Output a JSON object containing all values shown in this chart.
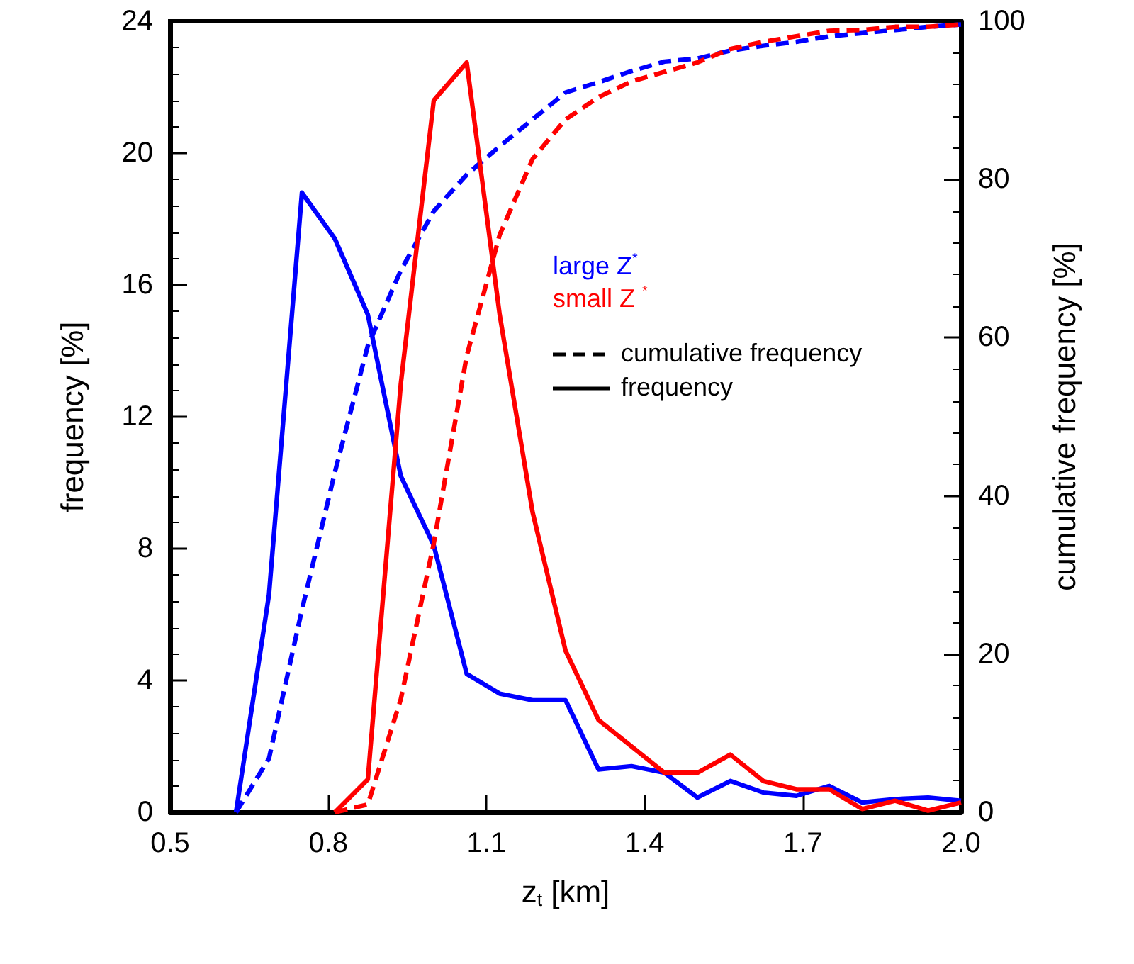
{
  "chart_data": {
    "type": "line",
    "xlabel": "z$_{t}$ [km]",
    "ylabel": "frequency [%]",
    "y2label": "cumulative frequency [%]",
    "xlim": [
      0.5,
      2.0
    ],
    "xticks": [
      0.5,
      0.8,
      1.1,
      1.4,
      1.7,
      {
        "value": 2.0,
        "label": "2.0"
      }
    ],
    "ylim": [
      0,
      24
    ],
    "yticks": [
      0,
      4,
      8,
      12,
      16,
      20,
      24
    ],
    "y2lim": [
      0,
      100
    ],
    "y2ticks": [
      0,
      20,
      40,
      60,
      80,
      100
    ],
    "grid": false,
    "legend": "right",
    "marker": "none",
    "annotations": [
      "cumulative frequency",
      "frequency"
    ],
    "series": [
      {
        "color": "#0000ff",
        "axis": "y2",
        "line_style": "dashed",
        "x": [
          0.625,
          0.6875,
          0.75,
          0.8125,
          0.875,
          0.9375,
          1.0,
          1.0625,
          1.125,
          1.1875,
          1.25,
          1.3125,
          1.375,
          1.4375,
          1.5,
          1.5625,
          1.625,
          1.6875,
          1.75,
          1.8125,
          1.875,
          1.9375,
          2.0
        ],
        "values": [
          0,
          6.8,
          25.6,
          43,
          59,
          68.5,
          76,
          80.6,
          84.2,
          87.6,
          91,
          92.3,
          93.7,
          94.9,
          95.3,
          96.3,
          96.9,
          97.4,
          98.1,
          98.5,
          98.9,
          99.3,
          99.6
        ]
      },
      {
        "name": "large Z$^{*}$",
        "color": "#0000ff",
        "line_style": "solid",
        "x": [
          0.625,
          0.6875,
          0.75,
          0.8125,
          0.875,
          0.9375,
          1.0,
          1.0625,
          1.125,
          1.1875,
          1.25,
          1.3125,
          1.375,
          1.4375,
          1.5,
          1.5625,
          1.625,
          1.6875,
          1.75,
          1.8125,
          1.875,
          1.9375,
          2.0
        ],
        "values": [
          0,
          6.6,
          18.8,
          17.4,
          15.1,
          10.2,
          8.1,
          4.2,
          3.6,
          3.4,
          3.4,
          1.3,
          1.4,
          1.2,
          0.45,
          0.95,
          0.6,
          0.5,
          0.8,
          0.3,
          0.4,
          0.45,
          0.35
        ]
      },
      {
        "color": "#ff0000",
        "axis": "y2",
        "line_style": "dashed",
        "x": [
          0.8125,
          0.875,
          0.9375,
          1.0,
          1.0625,
          1.125,
          1.1875,
          1.25,
          1.3125,
          1.375,
          1.4375,
          1.5,
          1.5625,
          1.625,
          1.6875,
          1.75,
          1.8125,
          1.875,
          1.9375,
          2.0
        ],
        "values": [
          0,
          1,
          14.3,
          34,
          57.7,
          73,
          82.6,
          87.6,
          90.4,
          92.4,
          93.6,
          94.8,
          96.5,
          97.4,
          98.1,
          98.8,
          98.9,
          99.3,
          99.3,
          99.6
        ]
      },
      {
        "name": "small Z $^{*}$",
        "color": "#ff0000",
        "line_style": "solid",
        "x": [
          0.8125,
          0.875,
          0.9375,
          1.0,
          1.0625,
          1.125,
          1.1875,
          1.25,
          1.3125,
          1.375,
          1.4375,
          1.5,
          1.5625,
          1.625,
          1.6875,
          1.75,
          1.8125,
          1.875,
          1.9375,
          2.0
        ],
        "values": [
          0,
          1,
          13,
          21.6,
          22.75,
          15.1,
          9.1,
          4.9,
          2.8,
          2,
          1.2,
          1.2,
          1.75,
          0.95,
          0.7,
          0.7,
          0.1,
          0.35,
          0.05,
          0.3
        ]
      }
    ]
  }
}
